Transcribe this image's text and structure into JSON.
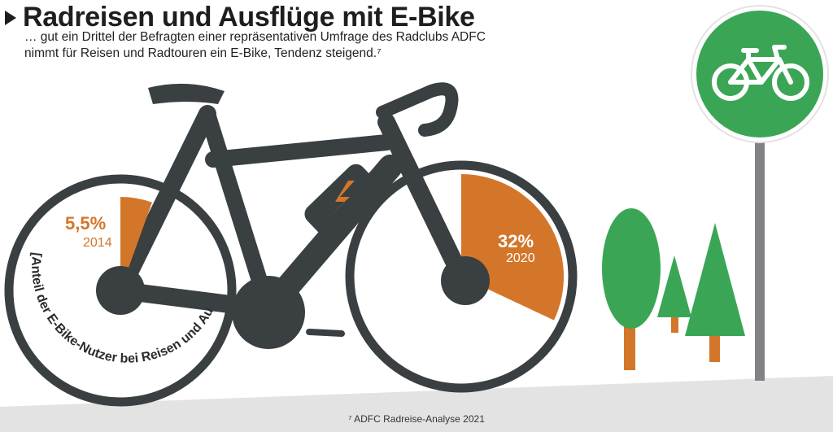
{
  "header": {
    "title": "Radreisen und Ausflüge mit E-Bike",
    "subtitle_line1": "… gut ein Drittel der Befragten einer repräsentativen Umfrage des Radclubs ADFC",
    "subtitle_line2": "nimmt für Reisen und Radtouren ein E-Bike, Tendenz steigend.⁷"
  },
  "footnote": "⁷ ADFC Radreise-Analyse 2021",
  "chart_data": {
    "type": "pie",
    "title": "Radreisen und Ausflüge mit E-Bike",
    "axis_label": "[Anteil der E-Bike-Nutzer bei Reisen und Ausflügen]",
    "categories": [
      "2014",
      "2020"
    ],
    "values": [
      5.5,
      32
    ],
    "value_labels": [
      "5,5%",
      "32%"
    ],
    "unit": "%"
  },
  "colors": {
    "bike": "#3a3f42",
    "accent": "#d4762a",
    "tree_green": "#3aa655",
    "trunk": "#d4762a",
    "pole": "#808285",
    "ground": "#e3e3e3",
    "sign_green": "#3aa655"
  },
  "icons": {
    "sign": "bicycle-sign-icon",
    "battery_bolt": "lightning-bolt-icon"
  }
}
